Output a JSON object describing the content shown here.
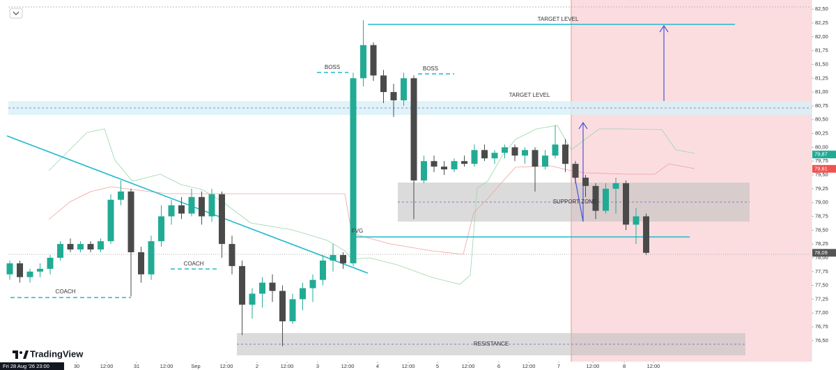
{
  "chart_data": {
    "type": "candlestick",
    "up_color": "#22ab94",
    "down_color": "#4a4a4a",
    "ylim": [
      76.12,
      82.54
    ],
    "xlim": [
      -0.14,
      79.38
    ],
    "yticks": [
      {
        "value": 82.5,
        "label": "82,50"
      },
      {
        "value": 82.25,
        "label": "82,25"
      },
      {
        "value": 82,
        "label": "82,00"
      },
      {
        "value": 81.75,
        "label": "81,75"
      },
      {
        "value": 81.5,
        "label": "81,50"
      },
      {
        "value": 81.25,
        "label": "81,25"
      },
      {
        "value": 81,
        "label": "81,00"
      },
      {
        "value": 80.75,
        "label": "80,75"
      },
      {
        "value": 80.5,
        "label": "80,50"
      },
      {
        "value": 80.25,
        "label": "80,25"
      },
      {
        "value": 80,
        "label": "80,00"
      },
      {
        "value": 79.75,
        "label": "79,75"
      },
      {
        "value": 79.5,
        "label": "79,50"
      },
      {
        "value": 79.25,
        "label": "79,25"
      },
      {
        "value": 79,
        "label": "79,00"
      },
      {
        "value": 78.75,
        "label": "78,75"
      },
      {
        "value": 78.5,
        "label": "78,50"
      },
      {
        "value": 78.25,
        "label": "78,25"
      },
      {
        "value": 78,
        "label": "78,00"
      },
      {
        "value": 77.75,
        "label": "77,75"
      },
      {
        "value": 77.5,
        "label": "77,50"
      },
      {
        "value": 77.25,
        "label": "77,25"
      },
      {
        "value": 77,
        "label": "77,00"
      },
      {
        "value": 76.75,
        "label": "76,75"
      },
      {
        "value": 76.5,
        "label": "76,50"
      }
    ],
    "xticks": [
      {
        "value": 6.62,
        "label": "30"
      },
      {
        "value": 9.59,
        "label": "12:00"
      },
      {
        "value": 12.55,
        "label": "31"
      },
      {
        "value": 15.52,
        "label": "12:00"
      },
      {
        "value": 18.41,
        "label": "Sep"
      },
      {
        "value": 21.45,
        "label": "12:00"
      },
      {
        "value": 24.48,
        "label": "2"
      },
      {
        "value": 27.45,
        "label": "12:00"
      },
      {
        "value": 30.48,
        "label": "3"
      },
      {
        "value": 33.45,
        "label": "12:00"
      },
      {
        "value": 36.41,
        "label": "4"
      },
      {
        "value": 39.45,
        "label": "12:00"
      },
      {
        "value": 42.34,
        "label": "5"
      },
      {
        "value": 45.38,
        "label": "12:00"
      },
      {
        "value": 48.41,
        "label": "6"
      },
      {
        "value": 51.38,
        "label": "12:00"
      },
      {
        "value": 54.34,
        "label": "7"
      },
      {
        "value": 57.72,
        "label": "12:00"
      },
      {
        "value": 60.83,
        "label": "8"
      },
      {
        "value": 63.72,
        "label": "12:00"
      }
    ],
    "crosshair_label": "Fri 28 Aug '26  23:00",
    "watermark": "TradingView",
    "annotations": [
      "TARGET LEVEL",
      "TARGET LEVEL",
      "BOSS",
      "BOSS",
      "COACH",
      "COACH",
      "FVG",
      "SUPPORT ZONE",
      "RESISTANCE"
    ],
    "price_tags": [
      {
        "value": 79.87,
        "label": "79,87",
        "color": "#22ab94"
      },
      {
        "value": 79.61,
        "label": "79,61",
        "color": "#ef5350"
      },
      {
        "value": 78.09,
        "label": "78,09",
        "color": "#555555"
      }
    ],
    "open": [
      77.7,
      77.9,
      77.65,
      77.75,
      77.8,
      78.0,
      78.25,
      78.15,
      78.25,
      78.15,
      78.3,
      79.05,
      79.2,
      78.1,
      77.7,
      78.3,
      78.75,
      78.95,
      78.8,
      79.1,
      78.75,
      79.15,
      78.25,
      77.85,
      77.15,
      77.35,
      77.55,
      77.4,
      76.85,
      77.25,
      77.45,
      77.6,
      77.95,
      78.05,
      77.9,
      81.25,
      81.85,
      81.3,
      81.0,
      80.85,
      81.25,
      79.4,
      79.75,
      79.65,
      79.6,
      79.75,
      79.7,
      79.95,
      79.8,
      79.9,
      80.0,
      79.85,
      79.95,
      79.65,
      79.85,
      80.05,
      79.7,
      79.45,
      79.3,
      78.85,
      79.25,
      79.35,
      78.6,
      78.75
    ],
    "high": [
      77.95,
      77.95,
      77.8,
      77.9,
      78.05,
      78.3,
      78.35,
      78.3,
      78.3,
      78.35,
      79.15,
      79.4,
      79.25,
      78.2,
      78.4,
      78.95,
      79.05,
      79.1,
      79.25,
      79.2,
      79.25,
      79.2,
      78.4,
      77.95,
      77.45,
      77.65,
      77.7,
      77.5,
      77.35,
      77.55,
      77.7,
      78.05,
      78.25,
      78.1,
      81.35,
      82.3,
      81.9,
      81.4,
      81.15,
      81.35,
      81.3,
      79.85,
      79.85,
      79.75,
      79.8,
      79.85,
      80.05,
      80.05,
      79.95,
      80.05,
      80.05,
      80.0,
      80.0,
      79.95,
      80.4,
      80.15,
      79.75,
      79.5,
      79.35,
      79.35,
      79.45,
      79.4,
      78.9,
      78.8
    ],
    "low": [
      77.6,
      77.55,
      77.55,
      77.65,
      77.7,
      77.95,
      78.1,
      78.1,
      78.1,
      78.1,
      78.25,
      78.95,
      77.3,
      77.55,
      77.6,
      78.2,
      78.6,
      78.7,
      78.75,
      78.6,
      78.65,
      78.0,
      77.7,
      76.6,
      76.9,
      77.1,
      77.2,
      76.4,
      76.8,
      77.05,
      77.2,
      77.5,
      77.75,
      77.8,
      77.85,
      81.1,
      81.2,
      80.8,
      80.55,
      80.75,
      78.7,
      79.35,
      79.55,
      79.5,
      79.55,
      79.65,
      79.65,
      79.75,
      79.7,
      79.8,
      79.75,
      79.7,
      79.2,
      79.6,
      79.8,
      79.55,
      79.35,
      79.1,
      78.7,
      78.8,
      78.8,
      78.5,
      78.25,
      78.05
    ],
    "close": [
      77.9,
      77.65,
      77.75,
      77.8,
      78.0,
      78.25,
      78.15,
      78.25,
      78.15,
      78.3,
      79.05,
      79.2,
      78.1,
      77.7,
      78.3,
      78.75,
      78.95,
      78.8,
      79.1,
      78.75,
      79.15,
      78.25,
      77.85,
      77.15,
      77.35,
      77.55,
      77.4,
      76.85,
      77.25,
      77.45,
      77.6,
      77.95,
      78.05,
      77.9,
      81.25,
      81.85,
      81.3,
      81.0,
      80.85,
      81.25,
      79.4,
      79.75,
      79.65,
      79.6,
      79.75,
      79.7,
      79.95,
      79.8,
      79.9,
      80.0,
      79.85,
      79.95,
      79.65,
      79.85,
      80.05,
      79.7,
      79.45,
      79.3,
      78.85,
      79.25,
      79.35,
      78.6,
      78.75,
      78.09
    ]
  }
}
